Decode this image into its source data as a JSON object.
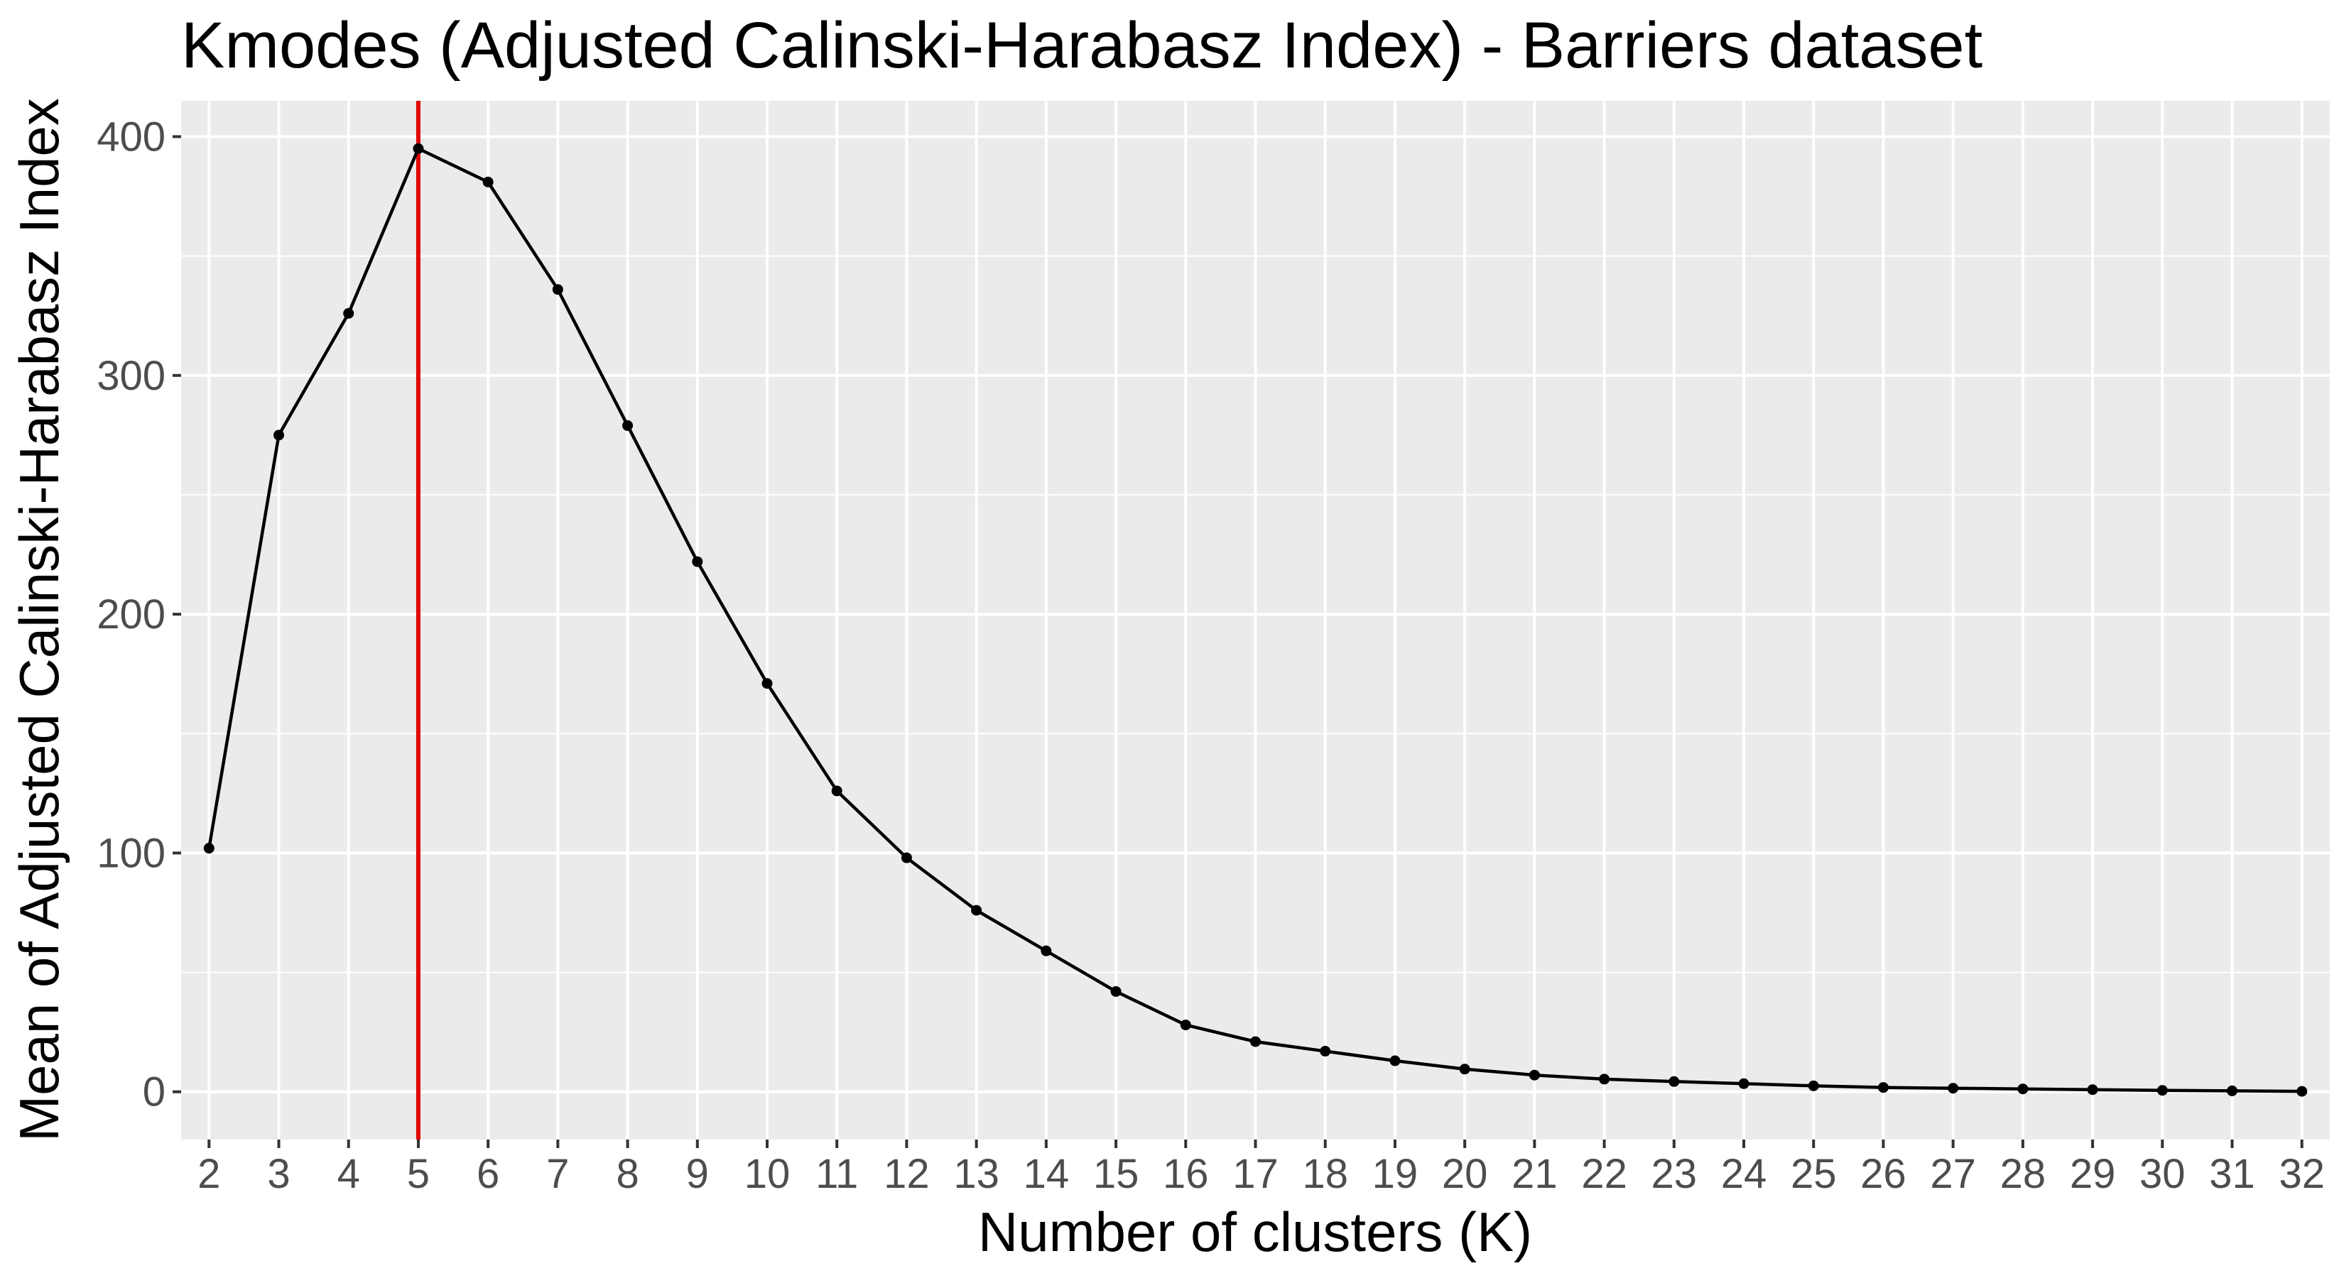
{
  "chart_data": {
    "type": "line",
    "title": "Kmodes (Adjusted Calinski-Harabasz Index) - Barriers dataset",
    "xlabel": "Number of clusters (K)",
    "ylabel": "Mean of Adjusted Calinski-Harabasz Index",
    "x": [
      2,
      3,
      4,
      5,
      6,
      7,
      8,
      9,
      10,
      11,
      12,
      13,
      14,
      15,
      16,
      17,
      18,
      19,
      20,
      21,
      22,
      23,
      24,
      25,
      26,
      27,
      28,
      29,
      30,
      31,
      32
    ],
    "series": [
      {
        "name": "Mean of Adjusted Calinski-Harabasz Index",
        "values": [
          102,
          275,
          326,
          395,
          381,
          336,
          279,
          222,
          171,
          126,
          98,
          76,
          59,
          42,
          28,
          21,
          17,
          13,
          9.5,
          7,
          5.3,
          4.3,
          3.4,
          2.5,
          1.8,
          1.5,
          1.2,
          0.9,
          0.6,
          0.4,
          0.2
        ]
      }
    ],
    "reference_line": {
      "axis": "x",
      "value": 5,
      "color": "#e00000"
    },
    "xlim": [
      1.6,
      32.4
    ],
    "ylim": [
      -20,
      415
    ],
    "y_ticks": [
      0,
      100,
      200,
      300,
      400
    ],
    "x_ticks": [
      2,
      3,
      4,
      5,
      6,
      7,
      8,
      9,
      10,
      11,
      12,
      13,
      14,
      15,
      16,
      17,
      18,
      19,
      20,
      21,
      22,
      23,
      24,
      25,
      26,
      27,
      28,
      29,
      30,
      31,
      32
    ],
    "grid": true,
    "panel_color": "#ebebeb",
    "line_color": "#000000"
  }
}
